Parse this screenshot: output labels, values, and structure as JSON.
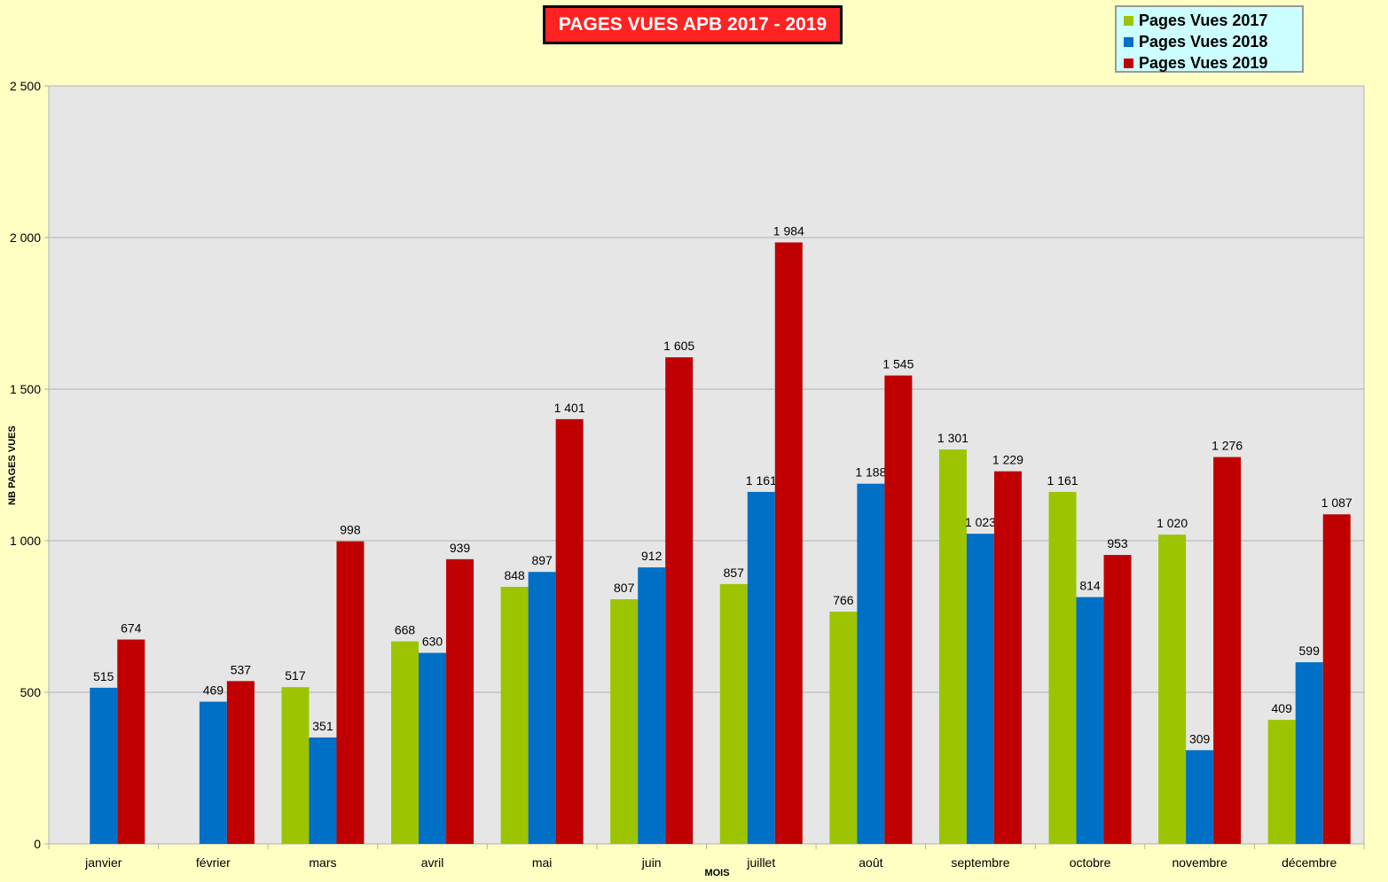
{
  "chart_data": {
    "type": "bar",
    "title": "PAGES VUES APB 2017 - 2019",
    "xlabel": "MOIS",
    "ylabel": "NB PAGES VUES",
    "ylim": [
      0,
      2500
    ],
    "yticks": [
      0,
      500,
      1000,
      1500,
      2000,
      2500
    ],
    "ytick_labels": [
      "0",
      "500",
      "1 000",
      "1 500",
      "2 000",
      "2 500"
    ],
    "grid": true,
    "legend_position": "top-right",
    "categories": [
      "janvier",
      "février",
      "mars",
      "avril",
      "mai",
      "juin",
      "juillet",
      "août",
      "septembre",
      "octobre",
      "novembre",
      "décembre"
    ],
    "series": [
      {
        "name": "Pages Vues 2017",
        "color": "#9dc400",
        "values": [
          null,
          null,
          517,
          668,
          848,
          807,
          857,
          766,
          1301,
          1161,
          1020,
          409
        ],
        "labels": [
          null,
          null,
          "517",
          "668",
          "848",
          "807",
          "857",
          "766",
          "1 301",
          "1 161",
          "1 020",
          "409"
        ]
      },
      {
        "name": "Pages Vues 2018",
        "color": "#006fc6",
        "values": [
          515,
          469,
          351,
          630,
          897,
          912,
          1161,
          1188,
          1023,
          814,
          309,
          599
        ],
        "labels": [
          "515",
          "469",
          "351",
          "630",
          "897",
          "912",
          "1 161",
          "1 188",
          "1 023",
          "814",
          "309",
          "599"
        ]
      },
      {
        "name": "Pages Vues 2019",
        "color": "#c00000",
        "values": [
          674,
          537,
          998,
          939,
          1401,
          1605,
          1984,
          1545,
          1229,
          953,
          1276,
          1087
        ],
        "labels": [
          "674",
          "537",
          "998",
          "939",
          "1 401",
          "1 605",
          "1 984",
          "1 545",
          "1 229",
          "953",
          "1 276",
          "1 087"
        ]
      }
    ]
  },
  "colors": {
    "background": "#ffffc4",
    "plot_area": "#e6e6e6",
    "title_box": "#ff2222",
    "legend_box": "#ccffff"
  }
}
